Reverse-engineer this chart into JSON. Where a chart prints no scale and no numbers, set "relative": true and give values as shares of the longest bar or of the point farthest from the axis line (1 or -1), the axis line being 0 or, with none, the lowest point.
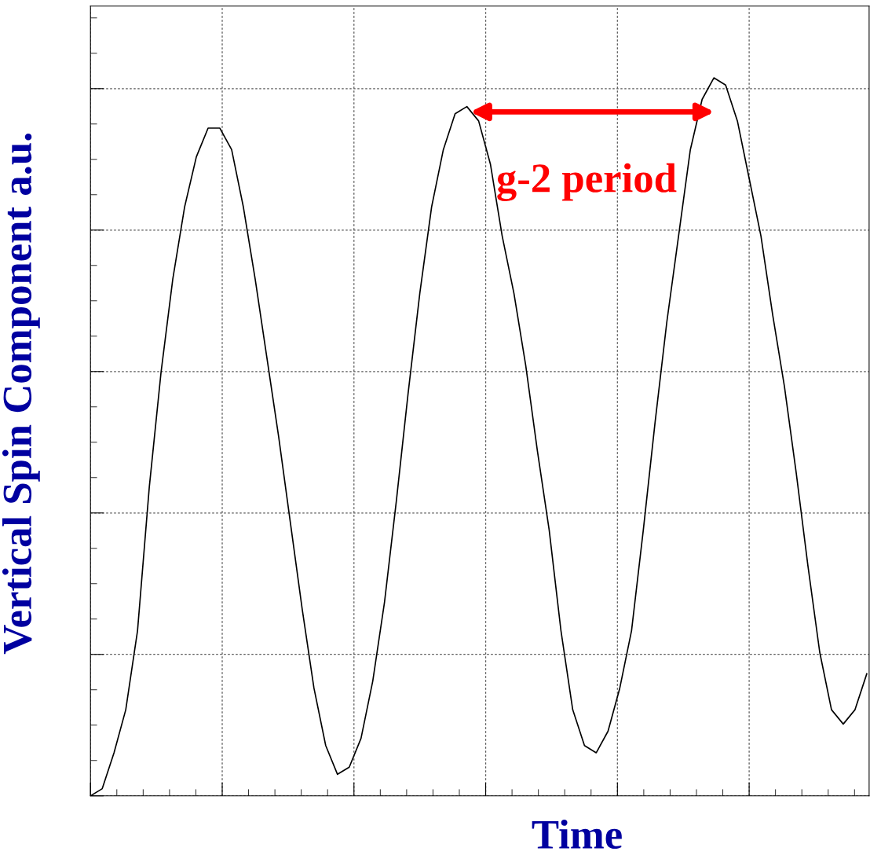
{
  "chart_data": {
    "type": "line",
    "xlabel": "Time",
    "ylabel": "Vertical Spin Component a.u.",
    "relative": true,
    "tick_labels": false,
    "grid": true,
    "categories": [
      null,
      null,
      null,
      null,
      null,
      null,
      null,
      null,
      null,
      null,
      null,
      null,
      null,
      null,
      null,
      null,
      null,
      null,
      null,
      null,
      null,
      null,
      null,
      null,
      null,
      null,
      null,
      null,
      null,
      null,
      null,
      null,
      null,
      null,
      null,
      null,
      null,
      null,
      null,
      null,
      null,
      null,
      null,
      null,
      null,
      null,
      null,
      null,
      null,
      null,
      null,
      null,
      null,
      null,
      null,
      null,
      null,
      null,
      null,
      null,
      null,
      null,
      null,
      null,
      null,
      null,
      null
    ],
    "series": [
      {
        "color": "#000000",
        "values": [
          0,
          0.01,
          0.06,
          0.12,
          0.23,
          0.43,
          0.59,
          0.72,
          0.82,
          0.89,
          0.93,
          0.93,
          0.9,
          0.82,
          0.72,
          0.61,
          0.5,
          0.38,
          0.26,
          0.15,
          0.07,
          0.03,
          0.04,
          0.08,
          0.16,
          0.27,
          0.41,
          0.56,
          0.7,
          0.82,
          0.9,
          0.95,
          0.96,
          0.94,
          0.88,
          0.78,
          0.7,
          0.6,
          0.48,
          0.37,
          0.23,
          0.12,
          0.07,
          0.06,
          0.09,
          0.15,
          0.23,
          0.37,
          0.52,
          0.66,
          0.78,
          0.9,
          0.97,
          1.0,
          0.99,
          0.94,
          0.86,
          0.78,
          0.67,
          0.57,
          0.45,
          0.32,
          0.2,
          0.12,
          0.1,
          0.12,
          0.17
        ]
      }
    ],
    "annotations": [
      "g-2 period"
    ]
  }
}
